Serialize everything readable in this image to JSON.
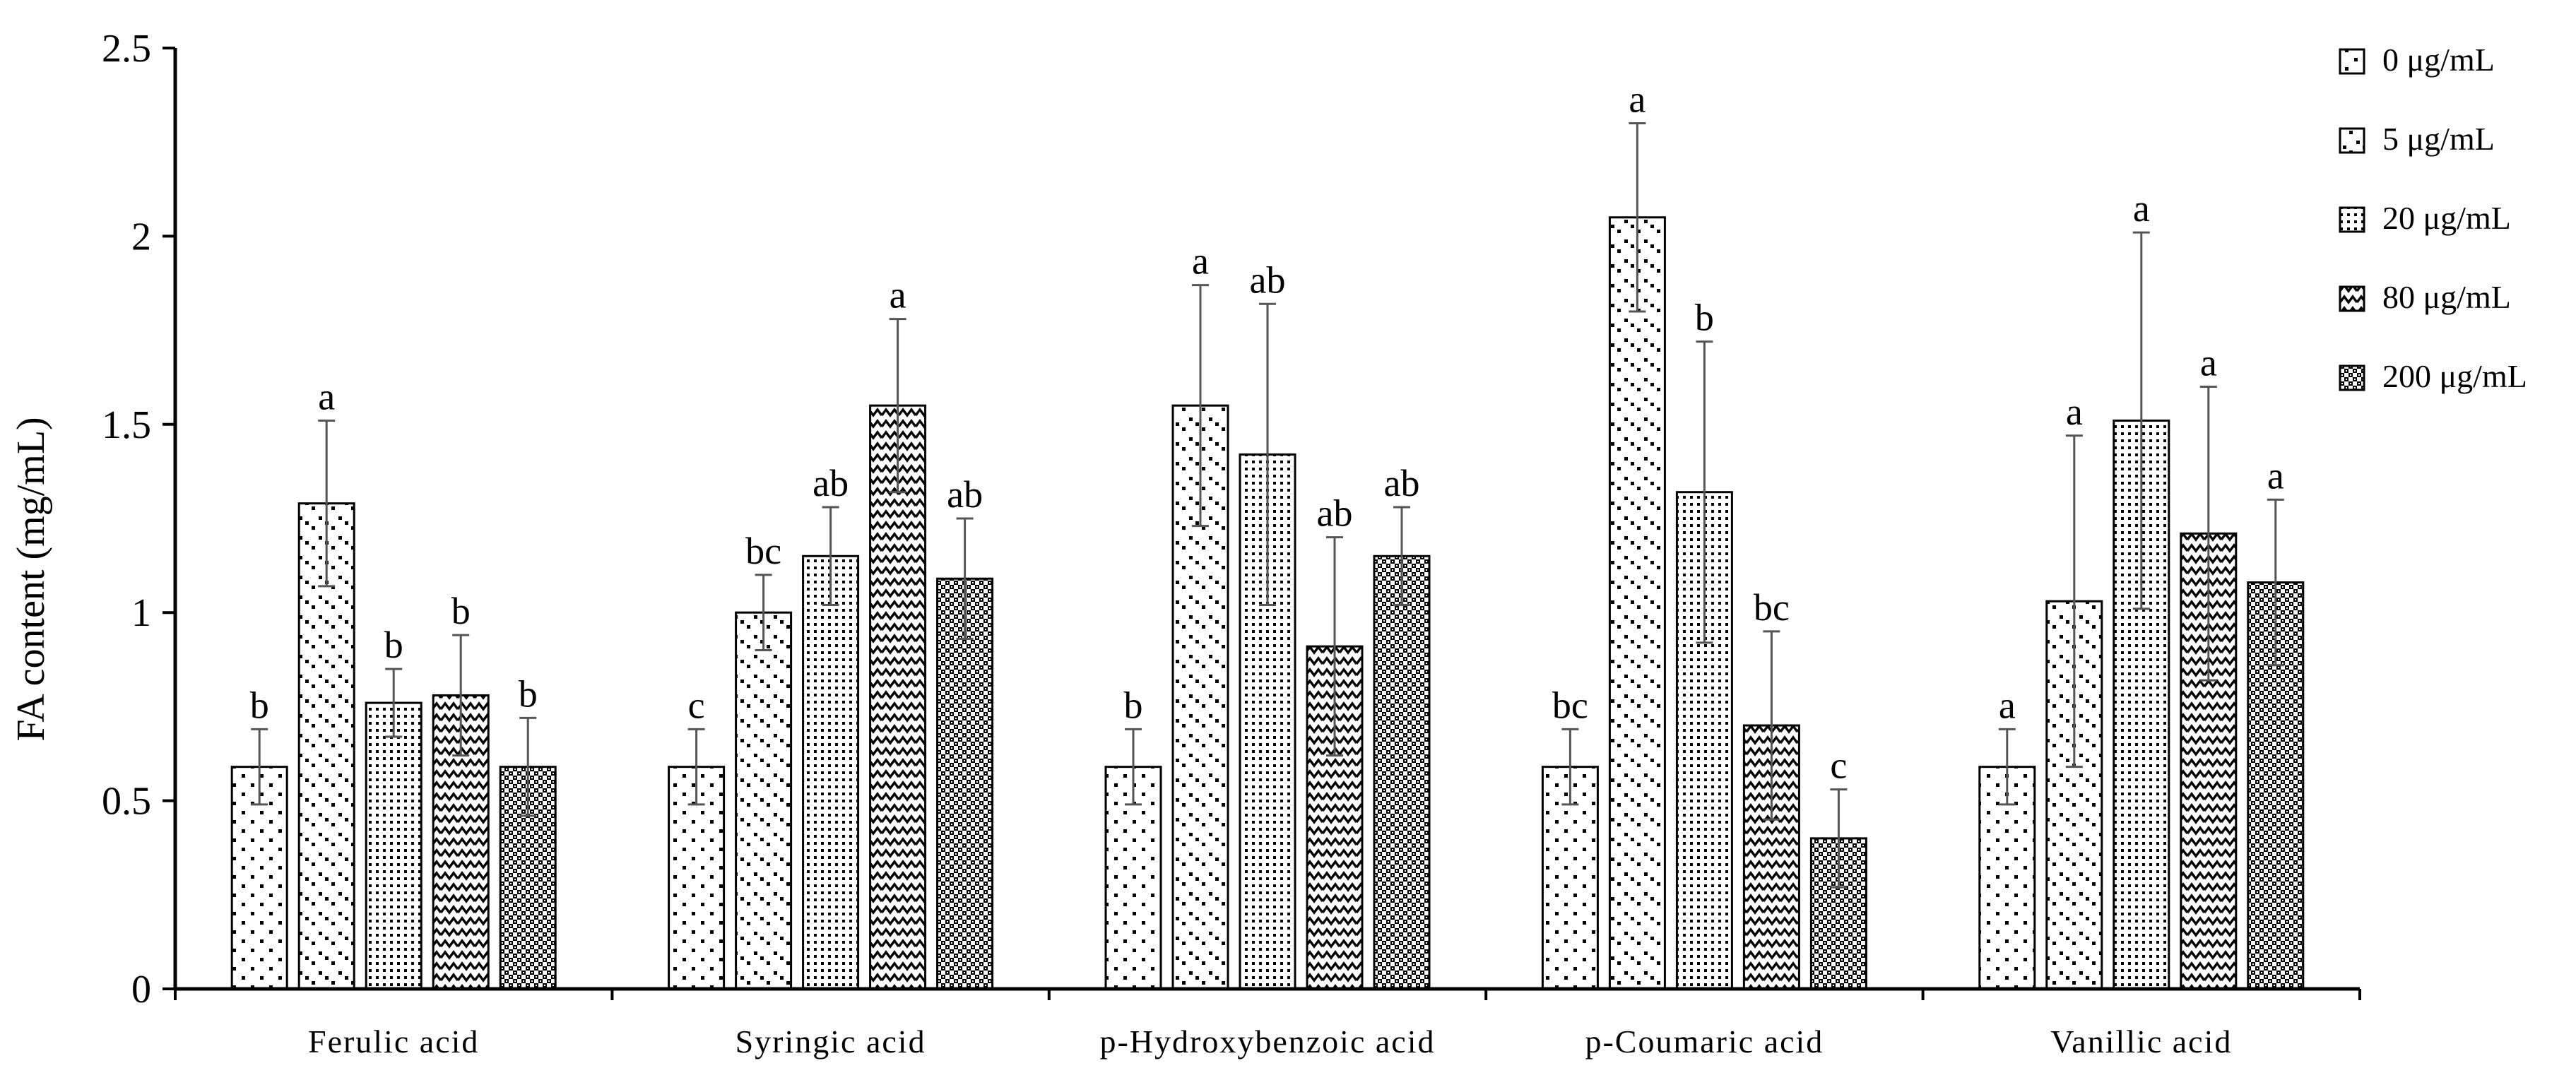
{
  "chart_data": {
    "type": "bar",
    "ylabel": "FA content (mg/mL)",
    "ylim": [
      0,
      2.5
    ],
    "yticks": [
      "0",
      "0.5",
      "1",
      "1.5",
      "2",
      "2.5"
    ],
    "ytick_values": [
      0,
      0.5,
      1,
      1.5,
      2,
      2.5
    ],
    "categories": [
      "Ferulic acid",
      "Syringic acid",
      "p-Hydroxybenzoic acid",
      "p-Coumaric acid",
      "Vanillic acid"
    ],
    "legend_position": "top-right",
    "series": [
      {
        "name": "0 μg/mL",
        "pattern": "sparse-dots",
        "values": [
          0.59,
          0.59,
          0.59,
          0.59,
          0.59
        ],
        "errors": [
          0.1,
          0.1,
          0.1,
          0.1,
          0.1
        ],
        "letters": [
          "b",
          "c",
          "b",
          "bc",
          "a"
        ]
      },
      {
        "name": "5 μg/mL",
        "pattern": "diagonal-dots",
        "values": [
          1.29,
          1.0,
          1.55,
          2.05,
          1.03
        ],
        "errors": [
          0.22,
          0.1,
          0.32,
          0.25,
          0.44
        ],
        "letters": [
          "a",
          "bc",
          "a",
          "a",
          "a"
        ]
      },
      {
        "name": "20 μg/mL",
        "pattern": "dense-dots",
        "values": [
          0.76,
          1.15,
          1.42,
          1.32,
          1.51
        ],
        "errors": [
          0.09,
          0.13,
          0.4,
          0.4,
          0.5
        ],
        "letters": [
          "b",
          "ab",
          "ab",
          "b",
          "a"
        ]
      },
      {
        "name": "80 μg/mL",
        "pattern": "zigzag",
        "values": [
          0.78,
          1.55,
          0.91,
          0.7,
          1.21
        ],
        "errors": [
          0.16,
          0.23,
          0.29,
          0.25,
          0.39
        ],
        "letters": [
          "b",
          "a",
          "ab",
          "bc",
          "a"
        ]
      },
      {
        "name": "200 μg/mL",
        "pattern": "checker",
        "values": [
          0.59,
          1.09,
          1.15,
          0.4,
          1.08
        ],
        "errors": [
          0.13,
          0.16,
          0.13,
          0.13,
          0.22
        ],
        "letters": [
          "b",
          "ab",
          "ab",
          "c",
          "a"
        ]
      }
    ],
    "grid": false
  }
}
